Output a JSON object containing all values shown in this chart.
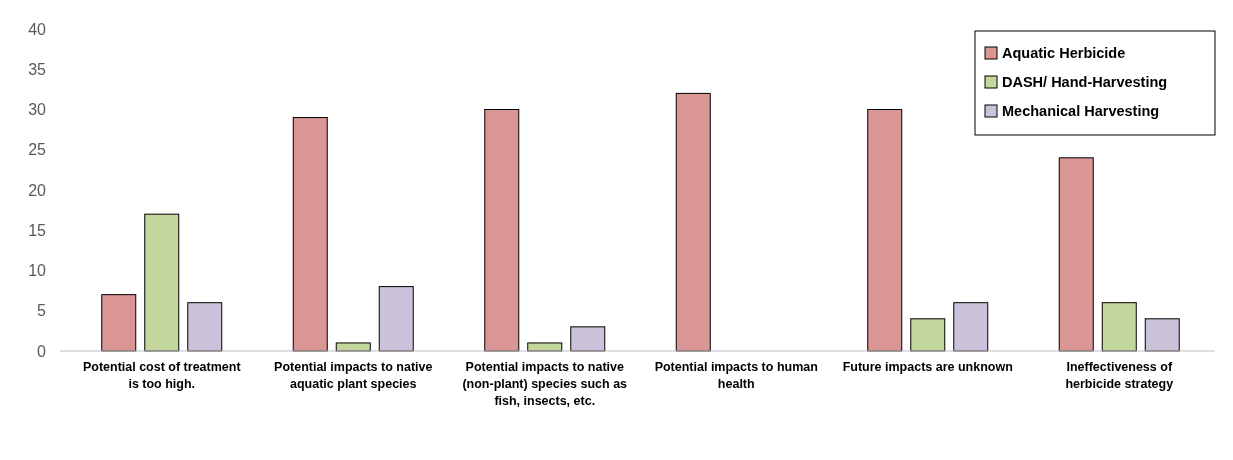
{
  "chart_data": {
    "type": "bar",
    "categories": [
      "Potential cost of treatment is too high.",
      "Potential impacts to native aquatic plant species",
      "Potential impacts to native (non-plant) species such as fish, insects, etc.",
      "Potential impacts to human health",
      "Future impacts are unknown",
      "Ineffectiveness of herbicide strategy"
    ],
    "series": [
      {
        "name": "Aquatic Herbicide",
        "color": "#d99694",
        "values": [
          7,
          29,
          30,
          32,
          30,
          24
        ]
      },
      {
        "name": "DASH/ Hand-Harvesting",
        "color": "#c3d69b",
        "values": [
          17,
          1,
          1,
          0,
          4,
          6
        ]
      },
      {
        "name": "Mechanical Harvesting",
        "color": "#ccc1da",
        "values": [
          6,
          8,
          3,
          0,
          6,
          4
        ]
      }
    ],
    "ylim": [
      0,
      40
    ],
    "yticks": [
      0,
      5,
      10,
      15,
      20,
      25,
      30,
      35,
      40
    ],
    "grid": false,
    "legend": "top right"
  }
}
